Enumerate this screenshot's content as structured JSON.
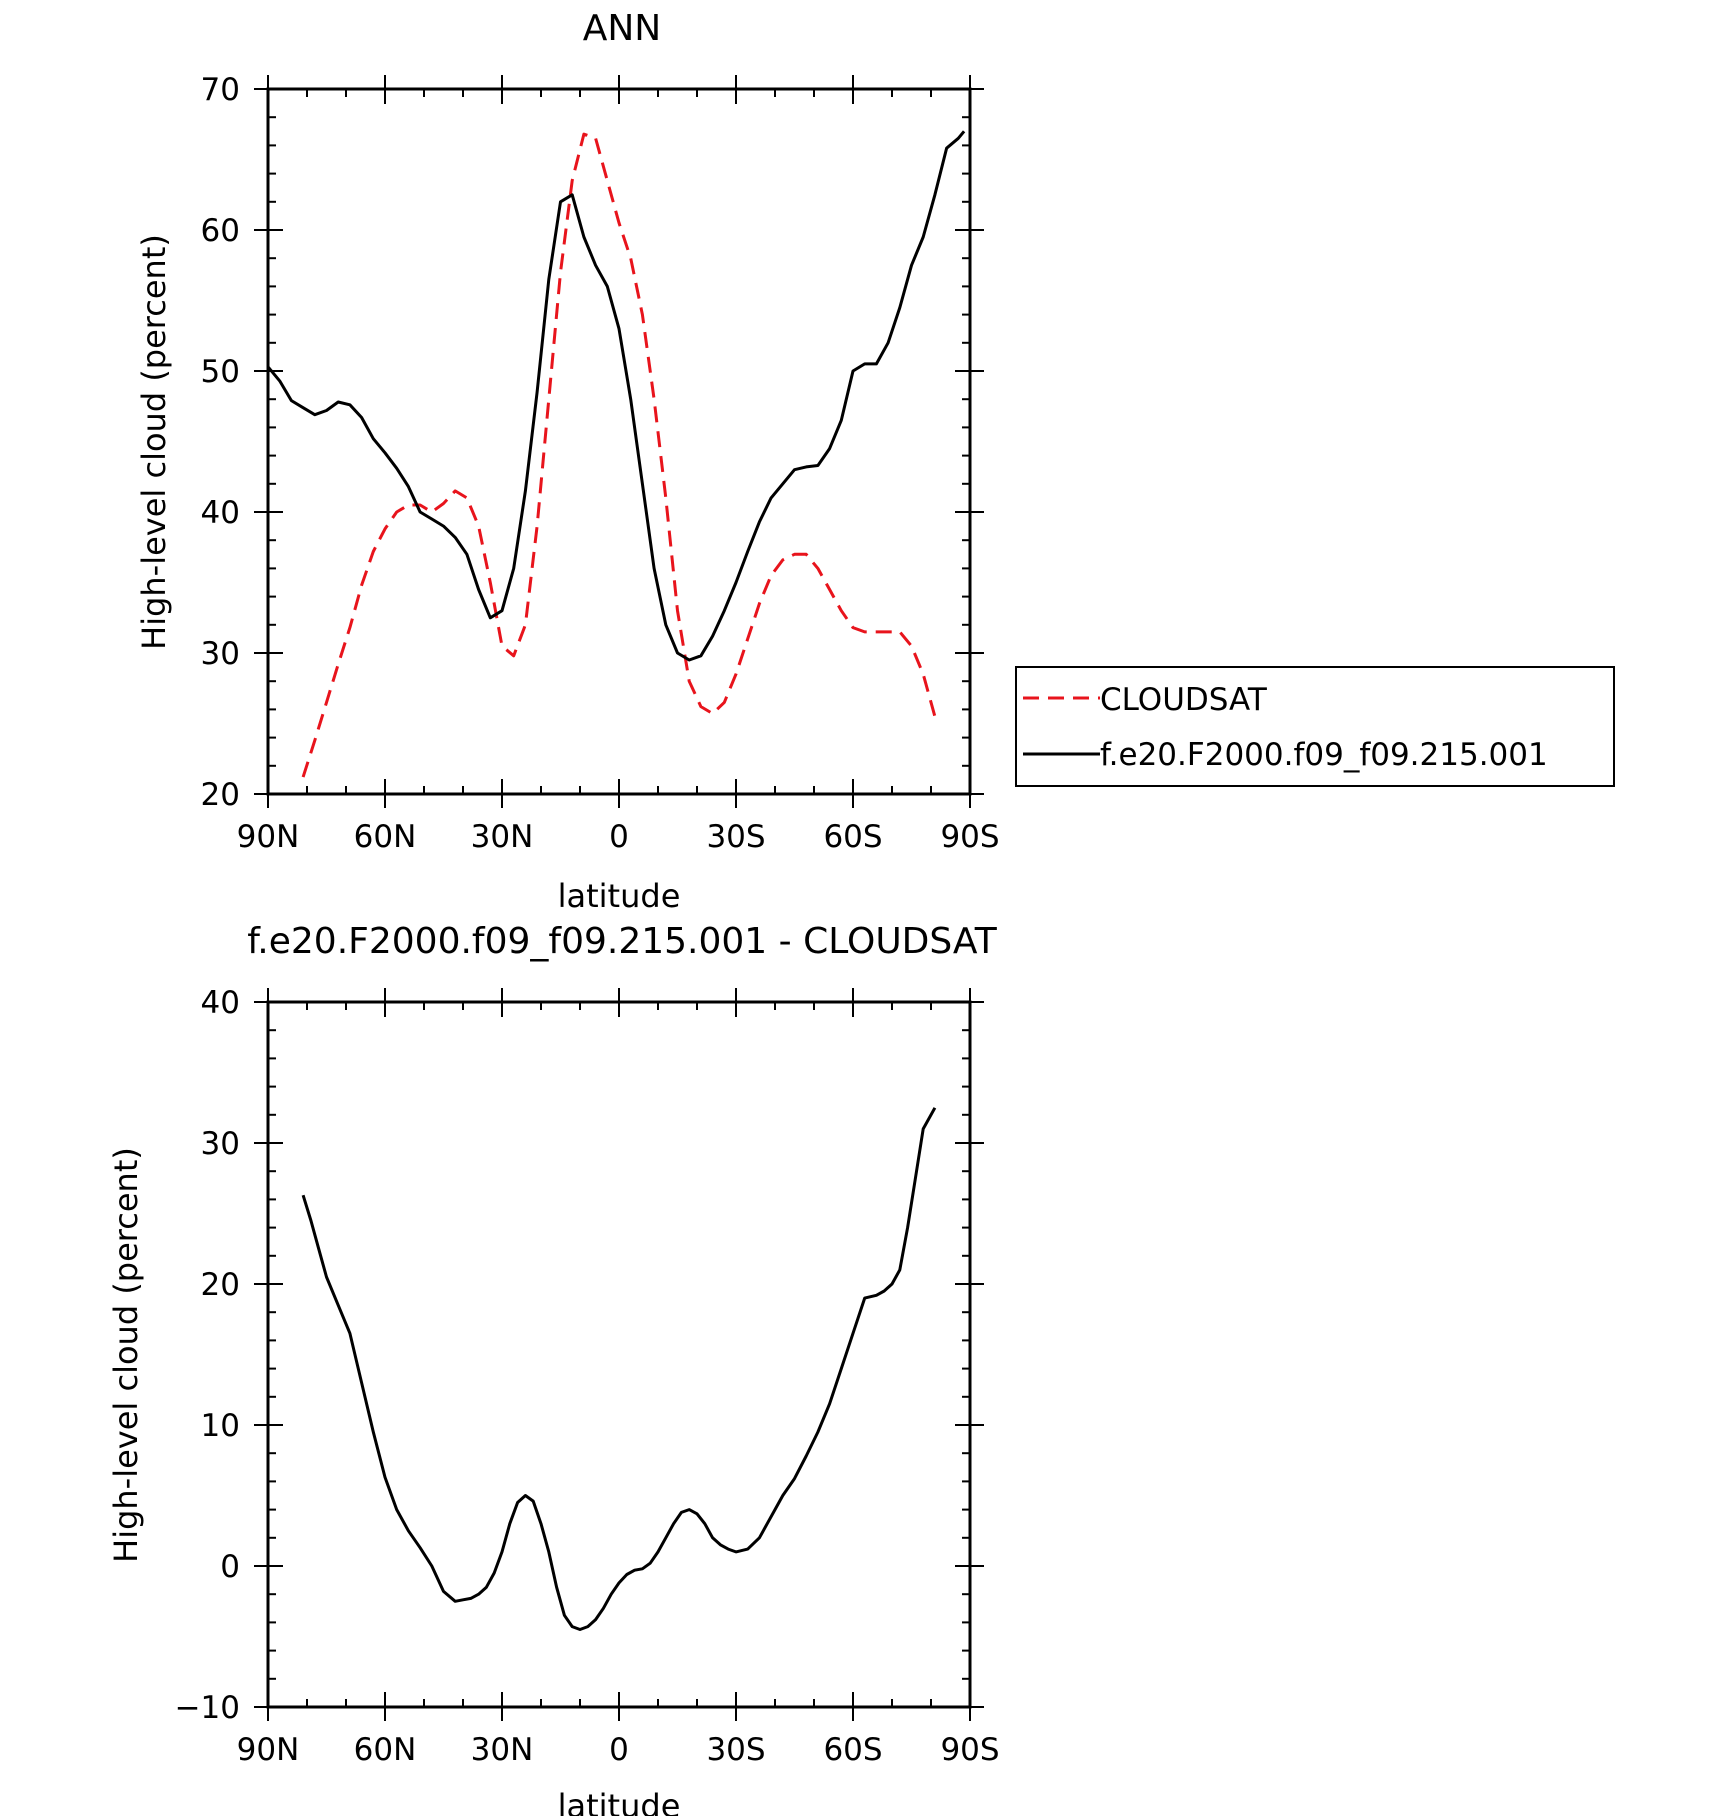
{
  "chart_data": [
    {
      "type": "line",
      "title": "ANN",
      "xlabel": "latitude",
      "ylabel": "High-level cloud (percent)",
      "xlim": [
        90,
        -90
      ],
      "ylim": [
        20,
        70
      ],
      "xticks": [
        {
          "value": 90,
          "label": "90N"
        },
        {
          "value": 60,
          "label": "60N"
        },
        {
          "value": 30,
          "label": "30N"
        },
        {
          "value": 0,
          "label": "0"
        },
        {
          "value": -30,
          "label": "30S"
        },
        {
          "value": -60,
          "label": "60S"
        },
        {
          "value": -90,
          "label": "90S"
        }
      ],
      "yticks": [
        20,
        30,
        40,
        50,
        60,
        70
      ],
      "grid": false,
      "legend_position": "right",
      "series": [
        {
          "name": "CLOUDSAT",
          "color": "#e8141c",
          "dash": "dashed",
          "x": [
            81,
            78,
            75,
            72,
            69,
            66,
            63,
            60,
            57,
            54,
            51,
            48,
            45,
            42,
            39,
            36,
            33,
            30,
            27,
            24,
            21,
            18,
            15,
            12,
            9,
            6,
            3,
            0,
            -3,
            -6,
            -9,
            -12,
            -15,
            -18,
            -21,
            -24,
            -27,
            -30,
            -33,
            -36,
            -39,
            -42,
            -45,
            -48,
            -51,
            -54,
            -57,
            -60,
            -63,
            -66,
            -69,
            -72,
            -75,
            -78,
            -81
          ],
          "y": [
            21.2,
            23.8,
            26.5,
            29.2,
            31.8,
            34.8,
            37.2,
            38.8,
            40.0,
            40.5,
            40.5,
            40.0,
            40.6,
            41.5,
            41.0,
            39.0,
            35.0,
            30.5,
            29.8,
            32.0,
            39.0,
            48.0,
            57.0,
            63.5,
            66.8,
            66.5,
            63.5,
            60.5,
            58.0,
            54.0,
            48.0,
            41.0,
            33.0,
            28.0,
            26.2,
            25.7,
            26.5,
            28.5,
            31.0,
            33.5,
            35.5,
            36.6,
            37.0,
            37.0,
            36.0,
            34.5,
            33.0,
            31.8,
            31.5,
            31.5,
            31.5,
            31.5,
            30.5,
            28.5,
            25.5
          ]
        },
        {
          "name": "f.e20.F2000.f09_f09.215.001",
          "color": "#000000",
          "dash": "solid",
          "x": [
            90,
            87,
            84,
            81,
            78,
            75,
            72,
            69,
            66,
            63,
            60,
            57,
            54,
            51,
            48,
            45,
            42,
            39,
            36,
            33,
            30,
            27,
            24,
            21,
            18,
            15,
            12,
            9,
            6,
            3,
            0,
            -3,
            -6,
            -9,
            -12,
            -15,
            -18,
            -21,
            -24,
            -27,
            -30,
            -33,
            -36,
            -39,
            -42,
            -45,
            -48,
            -51,
            -54,
            -57,
            -60,
            -63,
            -66,
            -69,
            -72,
            -75,
            -78,
            -81,
            -84,
            -87,
            -88.5
          ],
          "y": [
            50.3,
            49.3,
            47.9,
            47.4,
            46.9,
            47.2,
            47.8,
            47.6,
            46.7,
            45.2,
            44.2,
            43.1,
            41.8,
            40.0,
            39.5,
            39.0,
            38.2,
            37.0,
            34.5,
            32.5,
            33.0,
            36.0,
            41.5,
            48.5,
            56.5,
            62.0,
            62.5,
            59.5,
            57.5,
            56.0,
            53.0,
            48.0,
            42.0,
            36.0,
            32.0,
            30.0,
            29.5,
            29.8,
            31.2,
            33.0,
            35.0,
            37.2,
            39.3,
            41.0,
            42.0,
            43.0,
            43.2,
            43.3,
            44.5,
            46.5,
            50.0,
            50.5,
            50.5,
            52.0,
            54.5,
            57.5,
            59.5,
            62.5,
            65.8,
            66.5,
            67.0
          ]
        }
      ]
    },
    {
      "type": "line",
      "title": "f.e20.F2000.f09_f09.215.001 - CLOUDSAT",
      "xlabel": "latitude",
      "ylabel": "High-level cloud (percent)",
      "xlim": [
        90,
        -90
      ],
      "ylim": [
        -10,
        40
      ],
      "xticks": [
        {
          "value": 90,
          "label": "90N"
        },
        {
          "value": 60,
          "label": "60N"
        },
        {
          "value": 30,
          "label": "30N"
        },
        {
          "value": 0,
          "label": "0"
        },
        {
          "value": -30,
          "label": "30S"
        },
        {
          "value": -60,
          "label": "60S"
        },
        {
          "value": -90,
          "label": "90S"
        }
      ],
      "yticks": [
        -10,
        0,
        10,
        20,
        30,
        40
      ],
      "grid": false,
      "series": [
        {
          "color": "#000000",
          "dash": "solid",
          "x": [
            81,
            79,
            77,
            75,
            72,
            69,
            66,
            63,
            60,
            57,
            54,
            51,
            48,
            45,
            42,
            40,
            38,
            36,
            34,
            32,
            30,
            28,
            26,
            24,
            22,
            20,
            18,
            16,
            14,
            12,
            10,
            8,
            6,
            4,
            2,
            0,
            -2,
            -4,
            -6,
            -8,
            -10,
            -12,
            -14,
            -16,
            -18,
            -20,
            -22,
            -24,
            -26,
            -28,
            -30,
            -33,
            -36,
            -38,
            -40,
            -42,
            -45,
            -48,
            -51,
            -54,
            -57,
            -60,
            -63,
            -66,
            -68,
            -70,
            -72,
            -74,
            -76,
            -78,
            -81
          ],
          "y": [
            26.3,
            24.5,
            22.5,
            20.5,
            18.5,
            16.5,
            13.0,
            9.5,
            6.3,
            4.0,
            2.5,
            1.3,
            0.0,
            -1.8,
            -2.5,
            -2.4,
            -2.3,
            -2.0,
            -1.5,
            -0.5,
            1.0,
            3.0,
            4.5,
            5.0,
            4.6,
            3.0,
            1.0,
            -1.5,
            -3.5,
            -4.3,
            -4.5,
            -4.3,
            -3.8,
            -3.0,
            -2.0,
            -1.2,
            -0.6,
            -0.3,
            -0.2,
            0.2,
            1.0,
            2.0,
            3.0,
            3.8,
            4.0,
            3.7,
            3.0,
            2.0,
            1.5,
            1.2,
            1.0,
            1.2,
            2.0,
            3.0,
            4.0,
            5.0,
            6.2,
            7.8,
            9.5,
            11.5,
            14.0,
            16.5,
            19.0,
            19.2,
            19.5,
            20.0,
            21.0,
            24.0,
            27.5,
            31.0,
            32.5
          ]
        }
      ]
    }
  ]
}
